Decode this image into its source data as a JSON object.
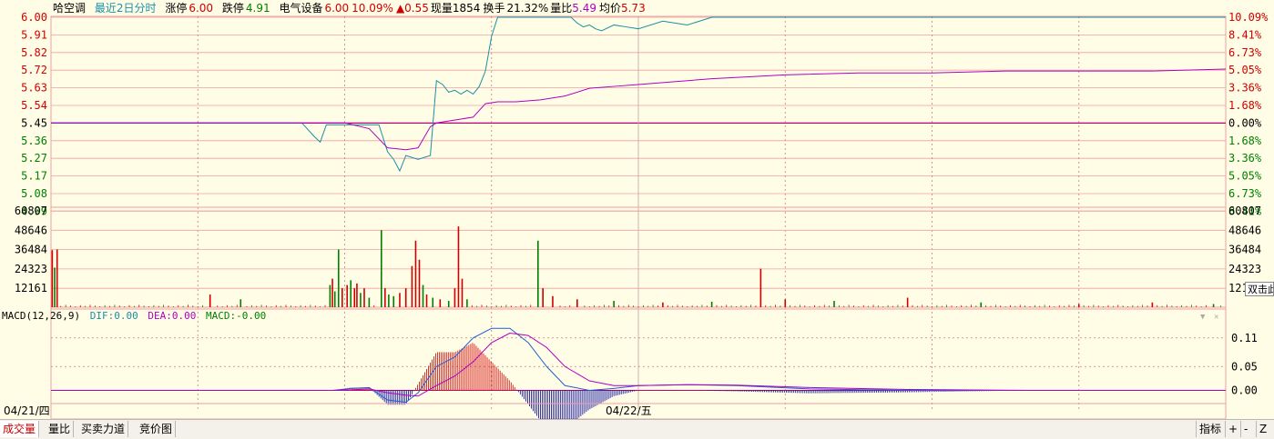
{
  "header": {
    "stock_name": "哈空调",
    "period": "最近2日分时",
    "limit_up_label": "涨停",
    "limit_up_value": "6.00",
    "limit_down_label": "跌停",
    "limit_down_value": "4.91",
    "sector": "电气设备",
    "price": "6.00",
    "change_pct": "10.09%",
    "change_value": "▲0.55",
    "volume_label": "现量",
    "volume_value": "1854",
    "turnover_label": "换手",
    "turnover_value": "21.32%",
    "ratio_label": "量比",
    "ratio_value": "5.49",
    "avg_label": "均价",
    "avg_value": "5.73"
  },
  "price_axis": {
    "left_labels": [
      "6.00",
      "5.91",
      "5.82",
      "5.72",
      "5.63",
      "5.54",
      "5.45",
      "5.36",
      "5.27",
      "5.17",
      "5.08",
      "4.99"
    ],
    "right_labels": [
      "10.09%",
      "8.41%",
      "6.73%",
      "5.05%",
      "3.36%",
      "1.68%",
      "0.00%",
      "1.68%",
      "3.36%",
      "5.05%",
      "6.73%",
      "8.41%"
    ],
    "prev_close": 5.45
  },
  "volume_axis": {
    "labels": [
      "60807",
      "48646",
      "36484",
      "24323",
      "12161"
    ],
    "right_clipped_label": "121"
  },
  "macd": {
    "params": "MACD(12,26,9)",
    "dif_label": "DIF:",
    "dif_value": "0.00",
    "dea_label": "DEA:",
    "dea_value": "0.00",
    "macd_label": "MACD:",
    "macd_value": "-0.00",
    "axis_labels": [
      "0.11",
      "0.05",
      "0.00"
    ]
  },
  "dates": {
    "day1": "04/21/四",
    "day2": "04/22/五"
  },
  "tooltip": "双击此",
  "tabs": [
    "成交量",
    "量比",
    "买卖力道",
    "竞价图"
  ],
  "right_tools": [
    "指标",
    "+",
    "-",
    "Z"
  ],
  "colors": {
    "up": "#D00000",
    "down": "#008000",
    "price_line": "#1B8FA8",
    "avg_line": "#B000C0",
    "grid_solid": "#F0A0A0",
    "grid_dash": "#C08080",
    "bg": "#FFFDE6"
  },
  "chart_data": {
    "type": "line",
    "title": "",
    "x_sessions": [
      "04/21/四",
      "04/22/五"
    ],
    "price_series": {
      "x_minutes": [
        0,
        100,
        180,
        200,
        205,
        215,
        220,
        225,
        240,
        268,
        275,
        280,
        285,
        290,
        300,
        310,
        315,
        320,
        325,
        330,
        335,
        340,
        345,
        350,
        355,
        360,
        365,
        370,
        375,
        380,
        385,
        390,
        395,
        400,
        405,
        410,
        415,
        420,
        425,
        430,
        435,
        440,
        445,
        450,
        460,
        470,
        480,
        500,
        520,
        540,
        560,
        580,
        600,
        620,
        640,
        660,
        680,
        700,
        720,
        740,
        760,
        780,
        800,
        820,
        840,
        860,
        880,
        900,
        920,
        940,
        960
      ],
      "values": [
        5.45,
        5.45,
        5.45,
        5.45,
        5.45,
        5.38,
        5.35,
        5.44,
        5.44,
        5.44,
        5.3,
        5.26,
        5.2,
        5.28,
        5.26,
        5.28,
        5.67,
        5.65,
        5.61,
        5.62,
        5.6,
        5.62,
        5.6,
        5.64,
        5.72,
        5.9,
        6.0,
        6.0,
        6.0,
        6.0,
        6.0,
        6.0,
        6.0,
        6.0,
        6.0,
        6.0,
        6.0,
        6.0,
        6.0,
        5.97,
        5.95,
        5.96,
        5.94,
        5.93,
        5.96,
        5.95,
        5.94,
        5.98,
        5.96,
        6.0,
        6.0,
        6.0,
        6.0,
        6.0,
        6.0,
        6.0,
        6.0,
        6.0,
        6.0,
        6.0,
        6.0,
        6.0,
        6.0,
        6.0,
        6.0,
        6.0,
        6.0,
        6.0,
        6.0,
        6.0,
        6.0
      ]
    },
    "avg_series": {
      "x_minutes": [
        0,
        240,
        260,
        275,
        290,
        300,
        310,
        315,
        325,
        335,
        345,
        355,
        365,
        380,
        400,
        420,
        440,
        460,
        480,
        500,
        540,
        600,
        660,
        720,
        780,
        840,
        900,
        960
      ],
      "values": [
        5.45,
        5.45,
        5.42,
        5.32,
        5.31,
        5.32,
        5.43,
        5.45,
        5.46,
        5.47,
        5.48,
        5.55,
        5.56,
        5.56,
        5.57,
        5.59,
        5.63,
        5.64,
        5.65,
        5.66,
        5.68,
        5.7,
        5.71,
        5.71,
        5.72,
        5.72,
        5.72,
        5.73
      ]
    },
    "volume_bars": [
      {
        "x": 1,
        "v": 36000,
        "dir": "up"
      },
      {
        "x": 3,
        "v": 25000,
        "dir": "down"
      },
      {
        "x": 5,
        "v": 36484,
        "dir": "up"
      },
      {
        "x": 130,
        "v": 8000,
        "dir": "up"
      },
      {
        "x": 155,
        "v": 5000,
        "dir": "down"
      },
      {
        "x": 228,
        "v": 14000,
        "dir": "down"
      },
      {
        "x": 230,
        "v": 18000,
        "dir": "up"
      },
      {
        "x": 232,
        "v": 10000,
        "dir": "down"
      },
      {
        "x": 235,
        "v": 36484,
        "dir": "down"
      },
      {
        "x": 238,
        "v": 12000,
        "dir": "up"
      },
      {
        "x": 242,
        "v": 14000,
        "dir": "up"
      },
      {
        "x": 245,
        "v": 17000,
        "dir": "down"
      },
      {
        "x": 248,
        "v": 12000,
        "dir": "up"
      },
      {
        "x": 250,
        "v": 15000,
        "dir": "up"
      },
      {
        "x": 253,
        "v": 9000,
        "dir": "down"
      },
      {
        "x": 256,
        "v": 12000,
        "dir": "up"
      },
      {
        "x": 260,
        "v": 6000,
        "dir": "down"
      },
      {
        "x": 270,
        "v": 48646,
        "dir": "down"
      },
      {
        "x": 273,
        "v": 12000,
        "dir": "up"
      },
      {
        "x": 276,
        "v": 8000,
        "dir": "down"
      },
      {
        "x": 280,
        "v": 7000,
        "dir": "down"
      },
      {
        "x": 285,
        "v": 9000,
        "dir": "up"
      },
      {
        "x": 290,
        "v": 12000,
        "dir": "up"
      },
      {
        "x": 295,
        "v": 26000,
        "dir": "up"
      },
      {
        "x": 298,
        "v": 42000,
        "dir": "up"
      },
      {
        "x": 301,
        "v": 30000,
        "dir": "up"
      },
      {
        "x": 304,
        "v": 14000,
        "dir": "down"
      },
      {
        "x": 307,
        "v": 8000,
        "dir": "up"
      },
      {
        "x": 312,
        "v": 6000,
        "dir": "down"
      },
      {
        "x": 318,
        "v": 5000,
        "dir": "up"
      },
      {
        "x": 325,
        "v": 4000,
        "dir": "down"
      },
      {
        "x": 330,
        "v": 12000,
        "dir": "up"
      },
      {
        "x": 333,
        "v": 51000,
        "dir": "up"
      },
      {
        "x": 336,
        "v": 18000,
        "dir": "up"
      },
      {
        "x": 340,
        "v": 5000,
        "dir": "down"
      },
      {
        "x": 398,
        "v": 42000,
        "dir": "down"
      },
      {
        "x": 402,
        "v": 12000,
        "dir": "up"
      },
      {
        "x": 410,
        "v": 7000,
        "dir": "up"
      },
      {
        "x": 430,
        "v": 5000,
        "dir": "up"
      },
      {
        "x": 460,
        "v": 4000,
        "dir": "down"
      },
      {
        "x": 500,
        "v": 3000,
        "dir": "up"
      },
      {
        "x": 540,
        "v": 3500,
        "dir": "down"
      },
      {
        "x": 580,
        "v": 24323,
        "dir": "up"
      },
      {
        "x": 600,
        "v": 5000,
        "dir": "up"
      },
      {
        "x": 640,
        "v": 4000,
        "dir": "down"
      },
      {
        "x": 700,
        "v": 6000,
        "dir": "up"
      },
      {
        "x": 760,
        "v": 3000,
        "dir": "down"
      },
      {
        "x": 840,
        "v": 2000,
        "dir": "up"
      },
      {
        "x": 900,
        "v": 3000,
        "dir": "up"
      },
      {
        "x": 950,
        "v": 2000,
        "dir": "down"
      }
    ],
    "macd_dif": {
      "x_minutes": [
        0,
        230,
        245,
        260,
        275,
        290,
        300,
        315,
        330,
        345,
        360,
        375,
        390,
        405,
        420,
        440,
        460,
        480,
        520,
        560,
        620,
        700,
        800,
        900,
        960
      ],
      "values": [
        0,
        0,
        0.004,
        0.006,
        -0.02,
        -0.025,
        -0.005,
        0.05,
        0.07,
        0.11,
        0.13,
        0.13,
        0.1,
        0.05,
        0.01,
        0.0,
        0.004,
        0.01,
        0.012,
        0.01,
        0.003,
        0.0,
        0.0,
        0.0,
        0.0
      ]
    },
    "macd_dea": {
      "x_minutes": [
        0,
        230,
        245,
        260,
        275,
        290,
        300,
        315,
        330,
        345,
        360,
        375,
        390,
        405,
        420,
        440,
        460,
        480,
        520,
        560,
        620,
        700,
        800,
        900,
        960
      ],
      "values": [
        0,
        0,
        0.001,
        0.003,
        -0.005,
        -0.01,
        -0.012,
        0.01,
        0.03,
        0.06,
        0.1,
        0.12,
        0.115,
        0.09,
        0.05,
        0.02,
        0.01,
        0.01,
        0.012,
        0.011,
        0.006,
        0.002,
        0.0,
        0.0,
        0.0
      ]
    },
    "ylim": [
      4.91,
      6.0
    ],
    "volume_ylim": [
      0,
      60807
    ],
    "macd_ylim": [
      -0.02,
      0.14
    ],
    "grid": true
  }
}
